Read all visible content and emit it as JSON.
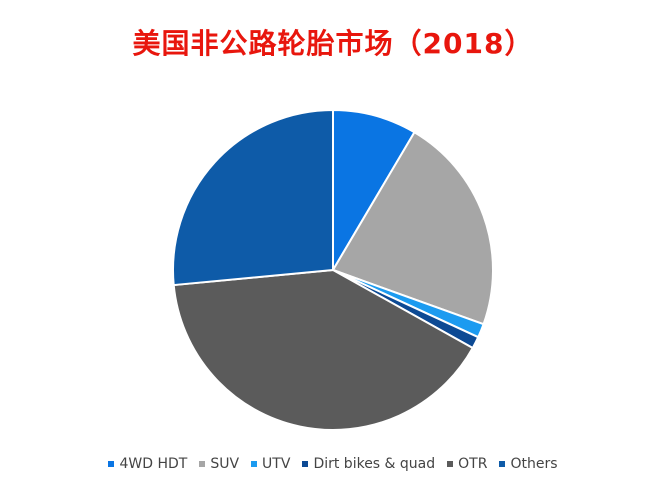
{
  "chart_data": {
    "type": "pie",
    "title": "美国非公路轮胎市场（2018）",
    "start_angle_deg": 0,
    "direction": "clockwise",
    "slices": [
      {
        "label": "4WD HDT",
        "value": 8.5,
        "color": "#0a75e3"
      },
      {
        "label": "SUV",
        "value": 22.0,
        "color": "#a6a6a6"
      },
      {
        "label": "UTV",
        "value": 1.4,
        "color": "#1c9bf0"
      },
      {
        "label": "Dirt bikes & quad",
        "value": 1.2,
        "color": "#0d4a94"
      },
      {
        "label": "OTR",
        "value": 40.4,
        "color": "#5b5b5b"
      },
      {
        "label": "Others",
        "value": 26.5,
        "color": "#0e5ba8"
      }
    ],
    "legend_position": "bottom"
  }
}
